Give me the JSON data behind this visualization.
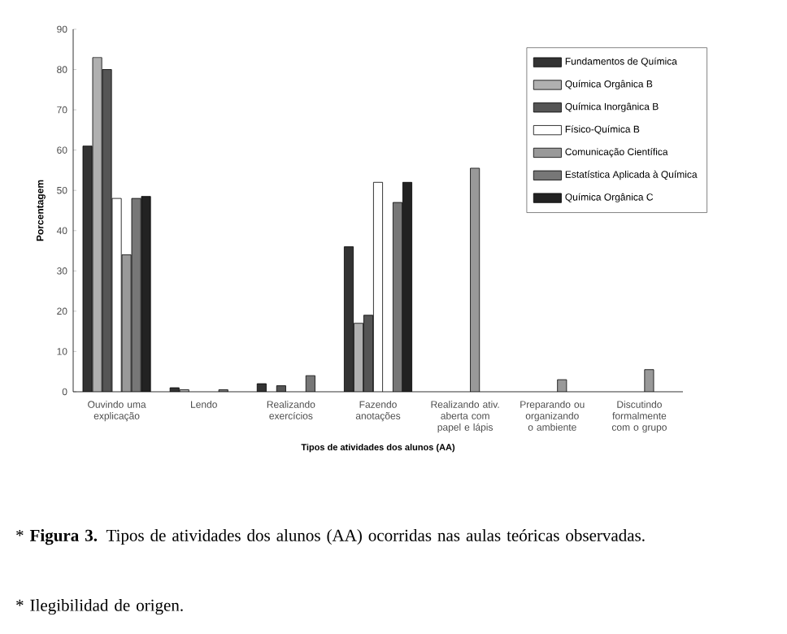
{
  "chart_data": {
    "type": "bar",
    "categories": [
      "Ouvindo uma explicação",
      "Lendo",
      "Realizando exercícios",
      "Fazendo anotações",
      "Realizando ativ. aberta com papel e lápis",
      "Preparando ou organizando o ambiente",
      "Discutindo formalmente com o grupo"
    ],
    "series": [
      {
        "name": "Fundamentos de Química",
        "color": "#333333",
        "values": [
          61,
          1,
          2,
          36,
          null,
          null,
          null
        ]
      },
      {
        "name": "Química Orgânica B",
        "color": "#b0b0b0",
        "values": [
          83,
          0.5,
          null,
          17,
          null,
          null,
          null
        ]
      },
      {
        "name": "Química Inorgânica B",
        "color": "#555555",
        "values": [
          80,
          null,
          1.5,
          19,
          null,
          null,
          null
        ]
      },
      {
        "name": "Físico-Química B",
        "color": "#ffffff",
        "values": [
          48,
          null,
          null,
          52,
          null,
          null,
          null
        ]
      },
      {
        "name": "Comunicação Científica",
        "color": "#999999",
        "values": [
          34,
          null,
          null,
          null,
          55.5,
          3,
          5.5
        ]
      },
      {
        "name": "Estatística Aplicada à Química",
        "color": "#777777",
        "values": [
          48,
          0.5,
          4,
          47,
          null,
          null,
          null
        ]
      },
      {
        "name": "Química Orgânica C",
        "color": "#222222",
        "values": [
          48.5,
          null,
          null,
          52,
          null,
          null,
          null
        ]
      }
    ],
    "xlabel": "Tipos de atividades dos alunos (AA)",
    "ylabel": "Porcentagem",
    "ylim": [
      0,
      90
    ],
    "yticks": [
      0,
      10,
      20,
      30,
      40,
      50,
      60,
      70,
      80,
      90
    ],
    "legend": "top right",
    "annotations": [
      "* **Figura 3.** Tipos de atividades dos alunos (AA) ocorridas nas aulas teóricas observadas.",
      "* Ilegibilidad de origen."
    ]
  }
}
